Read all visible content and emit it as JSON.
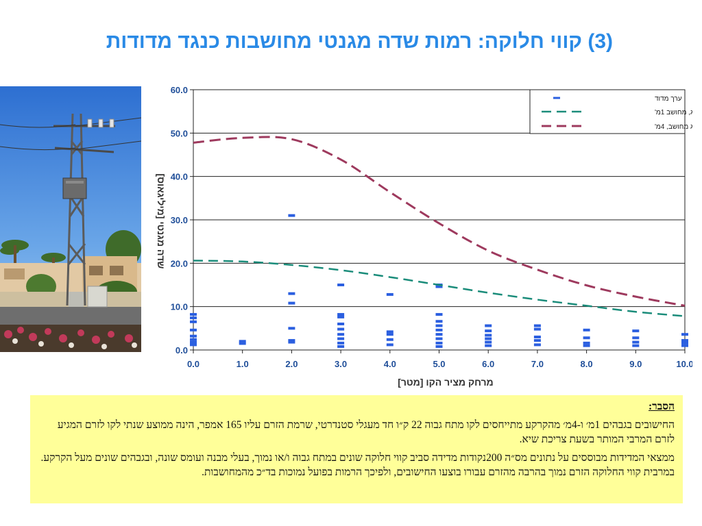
{
  "slide": {
    "title": "(3)  קווי חלוקה: רמות שדה מגנטי מחושבות כנגד מדודות"
  },
  "explanation": {
    "heading": "הסבר:",
    "paragraph1": "החישובים בגבהים 1מ׳ ו-4מ׳ מהקרקע מתייחסים לקו מתח גבוה 22 ק״ו חד מעגלי סטנדרטי, שרמת הזרם עליו 165 אמפר, הינה ממוצע שנתי לקו לזרם המגיע לזרם המרבי המותר בשעת צריכת שיא.",
    "paragraph2": "ממצאי המדידות מבוססים על נתונים מס״ה 200נקודות מדידה סביב קווי חלוקה שונים במתח גבוה ו/או נמוך, בעלי מבנה ועומס שונה, ובגבהים שונים מעל הקרקע. במרבית קווי החלוקה הזרם נמוך בהרבה מהזרם עבורו בוצעו החישובים, ולפיכך הרמות בפועל נמוכות בד״כ מהמחושבות."
  },
  "chart_data": {
    "type": "line",
    "xlabel": "מרחק מציר הקו [מטר]",
    "ylabel": "שדה מגנטי [מיליגאוס]",
    "xlim": [
      0,
      10
    ],
    "ylim": [
      0,
      60
    ],
    "x_ticks": [
      "0.0",
      "1.0",
      "2.0",
      "3.0",
      "4.0",
      "5.0",
      "6.0",
      "7.0",
      "8.0",
      "9.0",
      "10.0"
    ],
    "y_ticks": [
      "0.0",
      "10.0",
      "20.0",
      "30.0",
      "40.0",
      "50.0",
      "60.0"
    ],
    "grid": "horizontal",
    "legend_position": "top-right",
    "colors": {
      "measured": "#2b5fe0",
      "calc_1m": "#1a8c7a",
      "calc_4m": "#9e3a5e",
      "axis_label": "#1f4e99"
    },
    "series": [
      {
        "name": "ערך מדוד",
        "style": "marker",
        "points": [
          [
            0,
            8.2
          ],
          [
            0,
            7.4
          ],
          [
            0,
            6.5
          ],
          [
            0,
            4.6
          ],
          [
            0,
            3.2
          ],
          [
            0,
            2.4
          ],
          [
            0,
            1.8
          ],
          [
            0,
            1.2
          ],
          [
            1,
            2.0
          ],
          [
            1,
            1.5
          ],
          [
            2,
            31.0
          ],
          [
            2,
            13.0
          ],
          [
            2,
            10.8
          ],
          [
            2,
            5.0
          ],
          [
            2,
            2.2
          ],
          [
            2,
            1.8
          ],
          [
            3,
            15.0
          ],
          [
            3,
            8.2
          ],
          [
            3,
            7.6
          ],
          [
            3,
            6.0
          ],
          [
            3,
            4.8
          ],
          [
            3,
            3.6
          ],
          [
            3,
            2.6
          ],
          [
            3,
            1.6
          ],
          [
            3,
            0.8
          ],
          [
            4,
            12.8
          ],
          [
            4,
            4.2
          ],
          [
            4,
            3.6
          ],
          [
            4,
            2.4
          ],
          [
            4,
            1.2
          ],
          [
            5,
            15.0
          ],
          [
            5,
            14.6
          ],
          [
            5,
            8.2
          ],
          [
            5,
            6.6
          ],
          [
            5,
            5.6
          ],
          [
            5,
            4.6
          ],
          [
            5,
            3.6
          ],
          [
            5,
            2.6
          ],
          [
            5,
            1.6
          ],
          [
            5,
            0.8
          ],
          [
            6,
            5.6
          ],
          [
            6,
            4.4
          ],
          [
            6,
            3.4
          ],
          [
            6,
            2.6
          ],
          [
            6,
            1.8
          ],
          [
            6,
            1.0
          ],
          [
            7,
            5.6
          ],
          [
            7,
            4.8
          ],
          [
            7,
            3.0
          ],
          [
            7,
            2.2
          ],
          [
            7,
            1.2
          ],
          [
            8,
            4.6
          ],
          [
            8,
            2.8
          ],
          [
            8,
            1.6
          ],
          [
            8,
            1.0
          ],
          [
            9,
            4.4
          ],
          [
            9,
            2.8
          ],
          [
            9,
            1.8
          ],
          [
            9,
            1.0
          ],
          [
            10,
            3.6
          ],
          [
            10,
            2.2
          ],
          [
            10,
            1.6
          ],
          [
            10,
            1.0
          ]
        ]
      },
      {
        "name": "מ\"ג, מחושב 1מ'",
        "style": "dashed",
        "x": [
          0,
          1,
          2,
          3,
          4,
          5,
          6,
          7,
          8,
          9,
          10
        ],
        "y": [
          20.6,
          20.4,
          19.6,
          18.4,
          16.8,
          15.0,
          13.2,
          11.6,
          10.2,
          8.8,
          7.8
        ]
      },
      {
        "name": "מ\"ג מחושב, 4מ'",
        "style": "dashed",
        "x": [
          0,
          1,
          2,
          3,
          4,
          5,
          6,
          7,
          8,
          9,
          10
        ],
        "y": [
          47.8,
          48.9,
          48.6,
          43.9,
          36.4,
          29.2,
          22.9,
          18.5,
          14.9,
          12.3,
          10.2
        ]
      }
    ]
  }
}
